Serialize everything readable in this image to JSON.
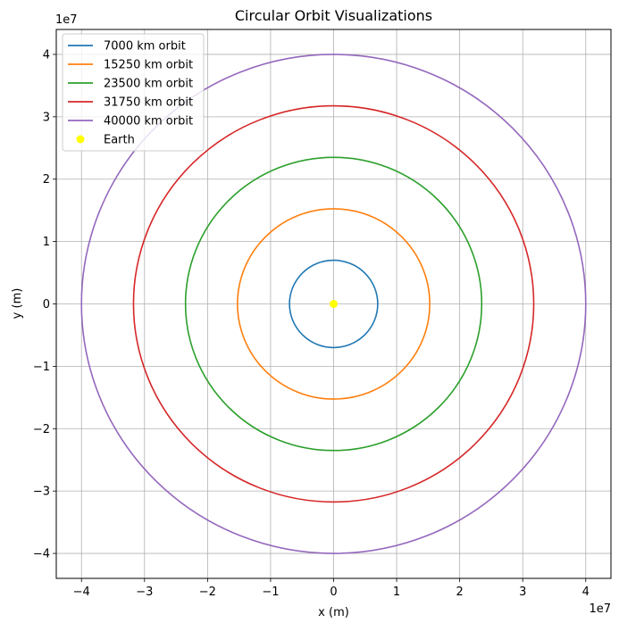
{
  "chart_data": {
    "type": "line",
    "title": "Circular Orbit Visualizations",
    "xlabel": "x (m)",
    "ylabel": "y (m)",
    "x_offset_label": "1e7",
    "y_offset_label": "1e7",
    "xlim": [
      -4.4,
      4.4
    ],
    "ylim": [
      -4.4,
      4.4
    ],
    "x_ticks": [
      -4,
      -3,
      -2,
      -1,
      0,
      1,
      2,
      3,
      4
    ],
    "x_tick_labels": [
      "−4",
      "−3",
      "−2",
      "−1",
      "0",
      "1",
      "2",
      "3",
      "4"
    ],
    "y_ticks": [
      -4,
      -3,
      -2,
      -1,
      0,
      1,
      2,
      3,
      4
    ],
    "y_tick_labels": [
      "−4",
      "−3",
      "−2",
      "−1",
      "0",
      "1",
      "2",
      "3",
      "4"
    ],
    "grid": true,
    "legend_position": "top-left",
    "series": [
      {
        "name": "7000 km orbit",
        "radius": 0.7,
        "color": "#1f77b4"
      },
      {
        "name": "15250 km orbit",
        "radius": 1.525,
        "color": "#ff7f0e"
      },
      {
        "name": "23500 km orbit",
        "radius": 2.35,
        "color": "#2ca02c"
      },
      {
        "name": "31750 km orbit",
        "radius": 3.175,
        "color": "#d62728"
      },
      {
        "name": "40000 km orbit",
        "radius": 4.0,
        "color": "#9467bd"
      }
    ],
    "points": [
      {
        "name": "Earth",
        "x": 0,
        "y": 0,
        "color": "#ffff00"
      }
    ]
  }
}
